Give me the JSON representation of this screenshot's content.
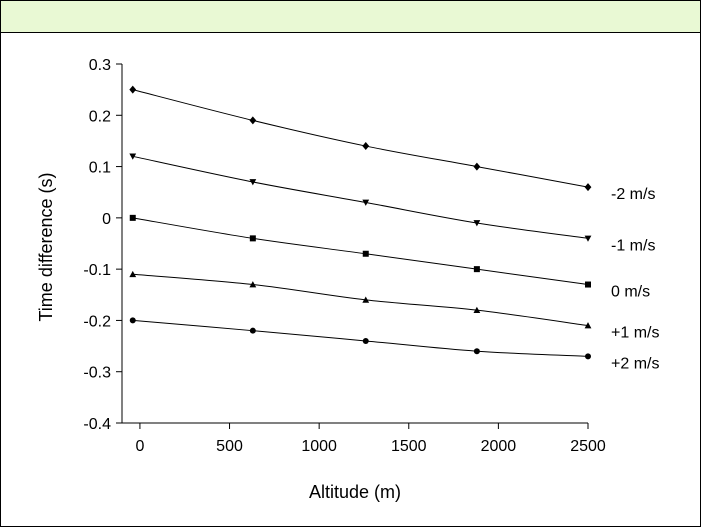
{
  "colors": {
    "header_band": "#e9f9d4",
    "ink": "#000000",
    "background": "#ffffff"
  },
  "chart_data": {
    "type": "line",
    "xlabel": "Altitude (m)",
    "ylabel": "Time difference (s)",
    "xlim": [
      -100,
      2500
    ],
    "ylim": [
      -0.4,
      0.3
    ],
    "x_ticks": [
      0,
      500,
      1000,
      1500,
      2000,
      2500
    ],
    "x_tick_labels": [
      "0",
      "500",
      "1000",
      "1500",
      "2000",
      "2500"
    ],
    "y_ticks": [
      0.3,
      0.2,
      0.1,
      0,
      -0.1,
      -0.2,
      -0.3,
      -0.4
    ],
    "y_tick_labels": [
      "0.3",
      "0.2",
      "0.1",
      "0",
      "-0.1",
      "-0.2",
      "-0.3",
      "-0.4"
    ],
    "grid": false,
    "x": [
      -40,
      630,
      1260,
      1880,
      2500
    ],
    "series": [
      {
        "name": "-2 m/s",
        "marker": "diamond",
        "values": [
          0.25,
          0.19,
          0.14,
          0.1,
          0.06
        ]
      },
      {
        "name": "-1 m/s",
        "marker": "triangle-down",
        "values": [
          0.12,
          0.07,
          0.03,
          -0.01,
          -0.04
        ]
      },
      {
        "name": "0 m/s",
        "marker": "square",
        "values": [
          0.0,
          -0.04,
          -0.07,
          -0.1,
          -0.13
        ]
      },
      {
        "name": "+1 m/s",
        "marker": "triangle-up",
        "values": [
          -0.11,
          -0.13,
          -0.16,
          -0.18,
          -0.21
        ]
      },
      {
        "name": "+2 m/s",
        "marker": "circle",
        "values": [
          -0.2,
          -0.22,
          -0.24,
          -0.26,
          -0.27
        ]
      }
    ]
  }
}
